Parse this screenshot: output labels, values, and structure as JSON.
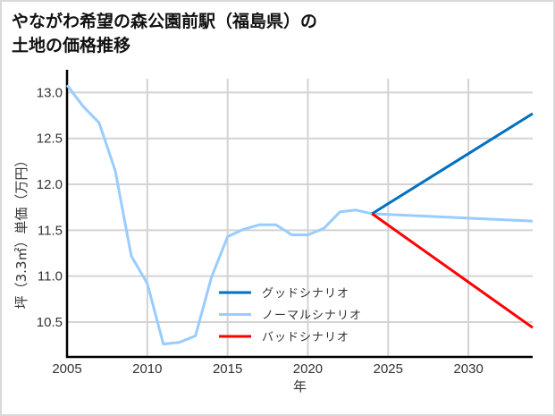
{
  "title_line1": "やながわ希望の森公園前駅（福島県）の",
  "title_line2": "土地の価格推移",
  "colors": {
    "good": "#0070c0",
    "normal": "#99ccff",
    "bad": "#ff0000",
    "grid": "#d3d3d3"
  },
  "chart_data": {
    "type": "line",
    "title": "やながわ希望の森公園前駅（福島県）の土地の価格推移",
    "xlabel": "年",
    "ylabel": "坪（3.3㎡）単価（万円）",
    "xlim": [
      2005,
      2034
    ],
    "ylim": [
      10.12,
      13.15
    ],
    "x_ticks": [
      "2005",
      "2010",
      "2015",
      "2020",
      "2025",
      "2030"
    ],
    "y_ticks": [
      "10.5",
      "11.0",
      "11.5",
      "12.0",
      "12.5",
      "13.0"
    ],
    "grid": true,
    "legend_position": "center-bottom",
    "series": [
      {
        "name": "グッドシナリオ",
        "color": "#0070c0",
        "x": [
          2024,
          2034
        ],
        "y": [
          11.68,
          12.77
        ]
      },
      {
        "name": "ノーマルシナリオ",
        "color": "#99ccff",
        "x": [
          2005,
          2006,
          2007,
          2008,
          2009,
          2010,
          2011,
          2012,
          2013,
          2014,
          2015,
          2016,
          2017,
          2018,
          2019,
          2020,
          2021,
          2022,
          2023,
          2024,
          2034
        ],
        "y": [
          13.08,
          12.85,
          12.67,
          12.15,
          11.22,
          10.92,
          10.26,
          10.28,
          10.35,
          10.99,
          11.43,
          11.51,
          11.56,
          11.56,
          11.45,
          11.45,
          11.52,
          11.7,
          11.72,
          11.68,
          11.6
        ]
      },
      {
        "name": "バッドシナリオ",
        "color": "#ff0000",
        "x": [
          2024,
          2034
        ],
        "y": [
          11.68,
          10.44
        ]
      }
    ]
  }
}
